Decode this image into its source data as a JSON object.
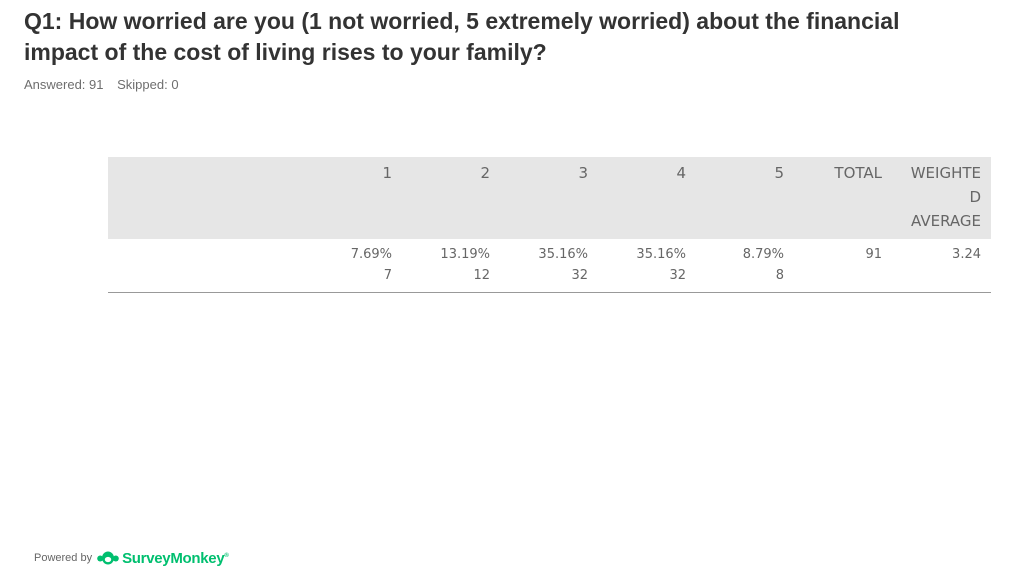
{
  "question": {
    "title": "Q1: How worried are you (1 not worried, 5 extremely worried) about the financial impact of the cost of living rises to your family?",
    "answered": "Answered: 91",
    "skipped": "Skipped: 0"
  },
  "chart_data": {
    "type": "table",
    "columns": [
      "1",
      "2",
      "3",
      "4",
      "5",
      "TOTAL",
      "WEIGHTED AVERAGE"
    ],
    "header_display": [
      "1",
      "2",
      "3",
      "4",
      "5",
      "TOTAL",
      "WEIGHTE|D|AVERAGE"
    ],
    "rows": [
      {
        "label": "",
        "percentages": [
          "7.69%",
          "13.19%",
          "35.16%",
          "35.16%",
          "8.79%"
        ],
        "counts": [
          "7",
          "12",
          "32",
          "32",
          "8"
        ],
        "total": "91",
        "weighted_average": "3.24"
      }
    ]
  },
  "footer": {
    "powered_by": "Powered by",
    "brand": "SurveyMonkey",
    "brand_mark": "®",
    "brand_color": "#00bf6f"
  }
}
